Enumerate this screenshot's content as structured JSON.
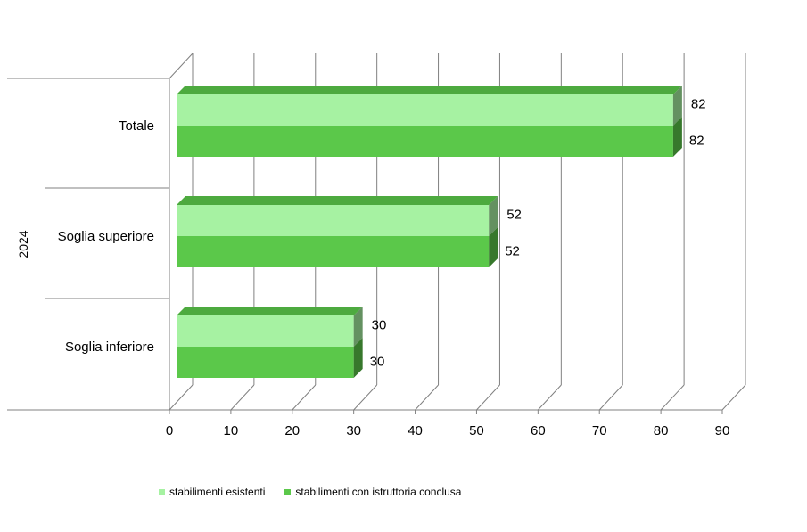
{
  "chart_data": {
    "type": "bar",
    "orientation": "horizontal",
    "three_d": true,
    "group_label": "2024",
    "categories": [
      "Totale",
      "Soglia superiore",
      "Soglia inferiore"
    ],
    "series": [
      {
        "name": "stabilimenti esistenti",
        "values": [
          82,
          52,
          30
        ],
        "color": "#a6f2a2"
      },
      {
        "name": "stabilimenti con istruttoria conclusa",
        "values": [
          82,
          52,
          30
        ],
        "color": "#5bc84a"
      }
    ],
    "xlim": [
      0,
      90
    ],
    "xticks": [
      "0",
      "10",
      "20",
      "30",
      "40",
      "50",
      "60",
      "70",
      "80",
      "90"
    ],
    "grid": true,
    "legend_position": "bottom"
  }
}
